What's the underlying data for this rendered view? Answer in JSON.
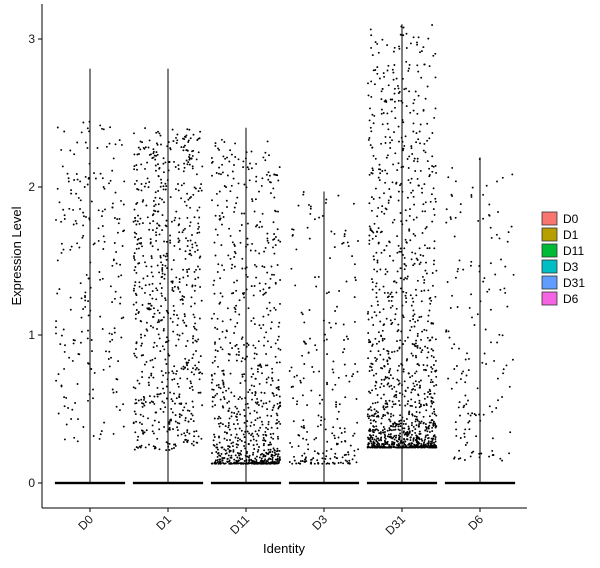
{
  "chart_data": {
    "type": "scatter",
    "subtype": "violin-jitter",
    "xlabel": "Identity",
    "ylabel": "Expression Level",
    "categories": [
      "D0",
      "D1",
      "D11",
      "D3",
      "D31",
      "D6"
    ],
    "ylim": [
      -0.18,
      3.13
    ],
    "yticks": [
      0,
      1,
      2,
      3
    ],
    "ytick_labels": [
      "0",
      "1",
      "2",
      "3"
    ],
    "grid": false,
    "legend_position": "right",
    "legend": [
      {
        "label": "D0",
        "color": "#F8766D"
      },
      {
        "label": "D1",
        "color": "#B79F00"
      },
      {
        "label": "D11",
        "color": "#00BA38"
      },
      {
        "label": "D3",
        "color": "#00BFC4"
      },
      {
        "label": "D31",
        "color": "#619CFF"
      },
      {
        "label": "D6",
        "color": "#F564E3"
      }
    ],
    "groups": [
      {
        "name": "D0",
        "max": 2.8,
        "zero_fraction": 0.85,
        "n_points": 230,
        "mode": "uniform",
        "low": 0.25,
        "high": 2.45,
        "skew": 0.9
      },
      {
        "name": "D1",
        "max": 2.8,
        "zero_fraction": 0.7,
        "n_points": 720,
        "mode": "uniform",
        "low": 0.22,
        "high": 2.4,
        "skew": 1.1
      },
      {
        "name": "D11",
        "max": 2.4,
        "zero_fraction": 0.7,
        "n_points": 830,
        "mode": "dense-low",
        "low": 0.13,
        "high": 2.32,
        "skew": 2.6
      },
      {
        "name": "D3",
        "max": 1.97,
        "zero_fraction": 0.9,
        "n_points": 240,
        "mode": "dense-low",
        "low": 0.13,
        "high": 1.98,
        "skew": 2.2
      },
      {
        "name": "D31",
        "max": 3.1,
        "zero_fraction": 0.55,
        "n_points": 1280,
        "mode": "dense-low",
        "low": 0.24,
        "high": 3.1,
        "skew": 2.8
      },
      {
        "name": "D6",
        "max": 2.2,
        "zero_fraction": 0.9,
        "n_points": 160,
        "mode": "uniform",
        "low": 0.15,
        "high": 2.2,
        "skew": 1.3
      }
    ]
  }
}
